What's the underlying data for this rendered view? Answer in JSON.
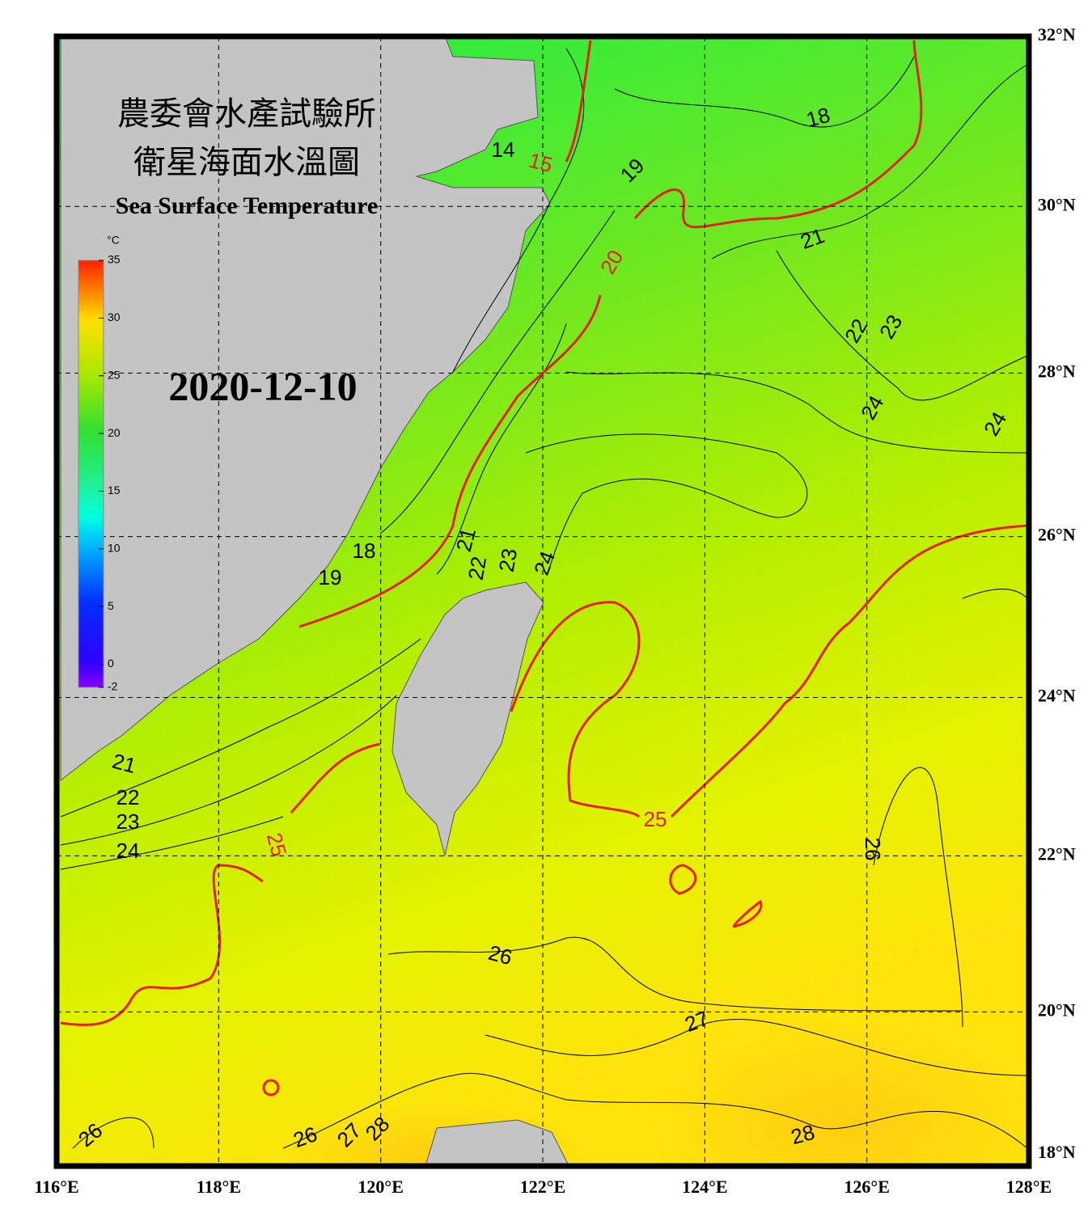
{
  "header": {
    "title_zh": "農委會水產試驗所",
    "subtitle_zh": "衛星海面水溫圖",
    "title_en": "Sea Surface Temperature",
    "date": "2020-12-10"
  },
  "colorbar": {
    "unit": "°C",
    "range": [
      -2,
      35
    ],
    "ticks": [
      35,
      30,
      25,
      20,
      15,
      10,
      5,
      0,
      -2
    ]
  },
  "axes": {
    "xlim": [
      116,
      128
    ],
    "ylim": [
      18,
      32
    ],
    "xticks": [
      {
        "value": 116,
        "label": "116°E"
      },
      {
        "value": 118,
        "label": "118°E"
      },
      {
        "value": 120,
        "label": "120°E"
      },
      {
        "value": 122,
        "label": "122°E"
      },
      {
        "value": 124,
        "label": "124°E"
      },
      {
        "value": 126,
        "label": "126°E"
      },
      {
        "value": 128,
        "label": "128°E"
      }
    ],
    "yticks": [
      {
        "value": 32,
        "label": "32°N"
      },
      {
        "value": 30,
        "label": "30°N"
      },
      {
        "value": 28,
        "label": "28°N"
      },
      {
        "value": 26,
        "label": "26°N"
      },
      {
        "value": 24,
        "label": "24°N"
      },
      {
        "value": 22,
        "label": "22°N"
      },
      {
        "value": 20,
        "label": "20°N"
      },
      {
        "value": 18,
        "label": "18°N"
      }
    ]
  },
  "contour_labels": [
    14,
    15,
    18,
    19,
    20,
    21,
    22,
    23,
    24,
    24,
    21,
    22,
    23,
    24,
    18,
    19,
    21,
    22,
    23,
    24,
    25,
    25,
    26,
    26,
    27,
    26,
    26,
    27,
    28,
    28
  ]
}
